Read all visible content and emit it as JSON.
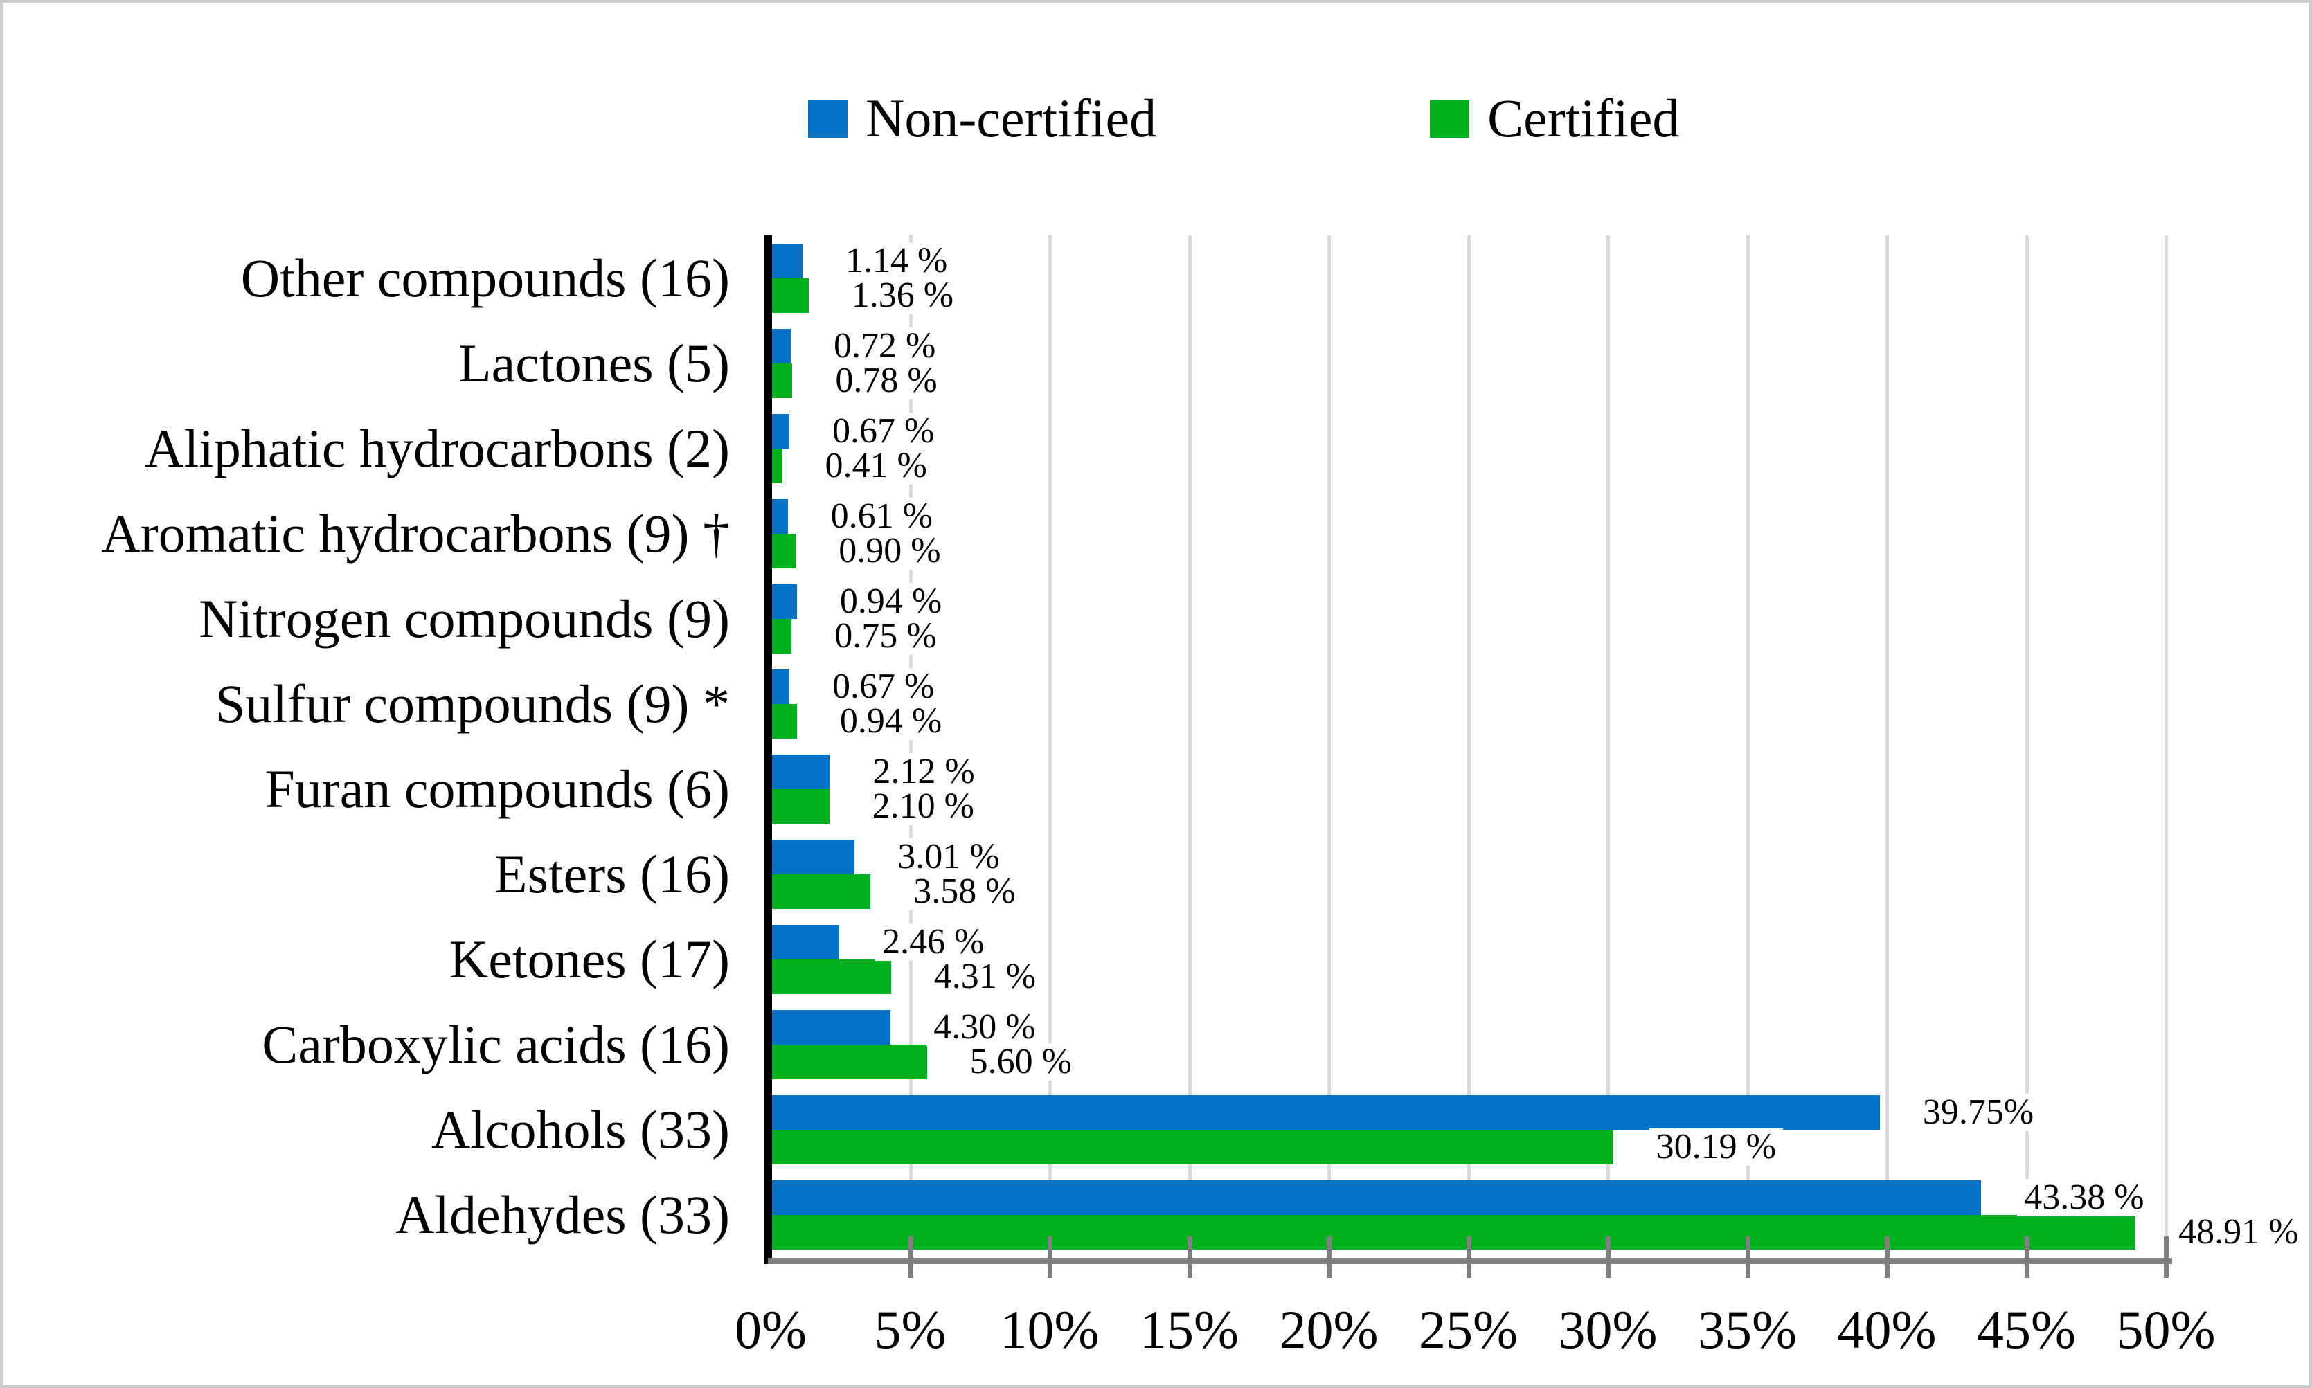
{
  "legend": {
    "items": [
      {
        "label": "Non-certified",
        "color": "#0571C5"
      },
      {
        "label": "Certified",
        "color": "#00B01E"
      }
    ]
  },
  "chart_data": {
    "type": "bar",
    "orientation": "horizontal",
    "title": "",
    "xlabel": "",
    "ylabel": "",
    "categories": [
      "Other compounds (16)",
      "Lactones (5)",
      "Aliphatic hydrocarbons (2)",
      "Aromatic hydrocarbons (9) †",
      "Nitrogen compounds (9)",
      "Sulfur compounds (9) *",
      "Furan compounds (6)",
      "Esters (16)",
      "Ketones (17)",
      "Carboxylic acids (16)",
      "Alcohols (33)",
      "Aldehydes (33)"
    ],
    "series": [
      {
        "name": "Non-certified",
        "color": "#0571C5",
        "values": [
          1.14,
          0.72,
          0.67,
          0.61,
          0.94,
          0.67,
          2.12,
          3.01,
          2.46,
          4.3,
          39.75,
          43.38
        ],
        "labels": [
          "1.14 %",
          "0.72 %",
          "0.67 %",
          "0.61 %",
          "0.94 %",
          "0.67 %",
          "2.12 %",
          "3.01 %",
          "2.46 %",
          "4.30 %",
          "39.75%",
          "43.38 %"
        ]
      },
      {
        "name": "Certified",
        "color": "#00B01E",
        "values": [
          1.36,
          0.78,
          0.41,
          0.9,
          0.75,
          0.94,
          2.1,
          3.58,
          4.31,
          5.6,
          30.19,
          48.91
        ],
        "labels": [
          "1.36 %",
          "0.78 %",
          "0.41 %",
          "0.90 %",
          "0.75 %",
          "0.94 %",
          "2.10 %",
          "3.58 %",
          "4.31 %",
          "5.60 %",
          "30.19 %",
          "48.91 %"
        ]
      }
    ],
    "x_axis": {
      "min": 0,
      "max": 50,
      "step": 5,
      "ticks": [
        "0%",
        "5%",
        "10%",
        "15%",
        "20%",
        "25%",
        "30%",
        "35%",
        "40%",
        "45%",
        "50%"
      ]
    },
    "grid": true,
    "gridline_color": "#dadada",
    "axis_color": "#7f7f7f",
    "legend_position": "top-center"
  }
}
